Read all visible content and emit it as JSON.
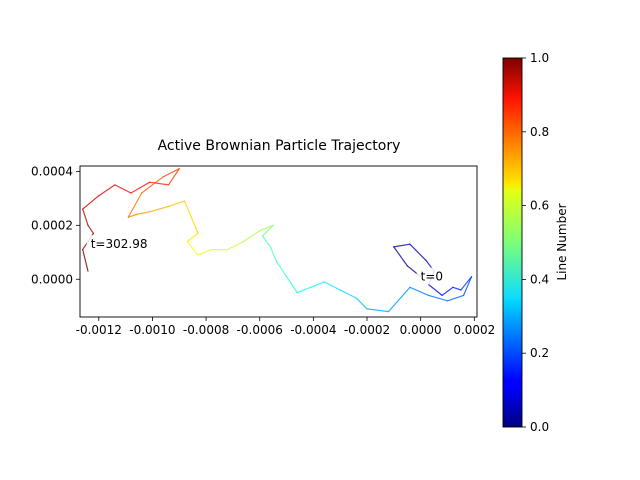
{
  "chart_data": {
    "type": "line",
    "title": "Active Brownian Particle Trajectory",
    "xlabel": "",
    "ylabel": "",
    "xlim": [
      -0.00127,
      0.00021
    ],
    "ylim": [
      -0.00014,
      0.00042
    ],
    "x_ticks": [
      -0.0012,
      -0.001,
      -0.0008,
      -0.0006,
      -0.0004,
      -0.0002,
      0.0,
      0.0002
    ],
    "x_tick_labels": [
      "-0.0012",
      "-0.0010",
      "-0.0008",
      "-0.0006",
      "-0.0004",
      "-0.0002",
      "0.0000",
      "0.0002"
    ],
    "y_ticks": [
      0.0,
      0.0002,
      0.0004
    ],
    "y_tick_labels": [
      "0.0000",
      "0.0002",
      "0.0004"
    ],
    "colormap": "jet",
    "colorbar": {
      "label": "Line Number",
      "range": [
        0.0,
        1.0
      ],
      "ticks": [
        "0.0",
        "0.2",
        "0.4",
        "0.6",
        "0.8",
        "1.0"
      ]
    },
    "annotations": [
      {
        "text": "t=0",
        "x": 0.0,
        "y": 1e-05
      },
      {
        "text": "t=302.98",
        "x": -0.00123,
        "y": 0.00013
      }
    ],
    "trajectory": {
      "x": [
        0.0,
        -5e-05,
        -0.0001,
        -4e-05,
        2e-05,
        5e-05,
        3e-05,
        8e-05,
        0.00012,
        0.00015,
        0.00019,
        0.00016,
        0.0001,
        3e-05,
        -4e-05,
        -0.00012,
        -0.0002,
        -0.00024,
        -0.0003,
        -0.00036,
        -0.00041,
        -0.00046,
        -0.0005,
        -0.00054,
        -0.00056,
        -0.00059,
        -0.00057,
        -0.00055,
        -0.0006,
        -0.00066,
        -0.00072,
        -0.00078,
        -0.00083,
        -0.00087,
        -0.00083,
        -0.00088,
        -0.00094,
        -0.00101,
        -0.00106,
        -0.00109,
        -0.00104,
        -0.00096,
        -0.0009,
        -0.00094,
        -0.00101,
        -0.00108,
        -0.00114,
        -0.0012,
        -0.00126,
        -0.00124,
        -0.00122,
        -0.00126,
        -0.00124
      ],
      "y": [
        1e-05,
        5e-05,
        0.00012,
        0.00013,
        7e-05,
        3e-05,
        -2e-05,
        -6e-05,
        -3e-05,
        -4e-05,
        1e-05,
        -6e-05,
        -8e-05,
        -6e-05,
        -3e-05,
        -0.00012,
        -0.00011,
        -7e-05,
        -4e-05,
        -1e-05,
        -3e-05,
        -5e-05,
        1e-05,
        7e-05,
        0.00012,
        0.00016,
        0.00018,
        0.0002,
        0.00018,
        0.00014,
        0.00011,
        0.00011,
        9e-05,
        0.00014,
        0.00017,
        0.00029,
        0.00027,
        0.00025,
        0.00024,
        0.00023,
        0.00032,
        0.00038,
        0.00041,
        0.00035,
        0.00036,
        0.00032,
        0.00035,
        0.00031,
        0.00026,
        0.0002,
        0.00017,
        0.00011,
        3e-05
      ]
    }
  }
}
